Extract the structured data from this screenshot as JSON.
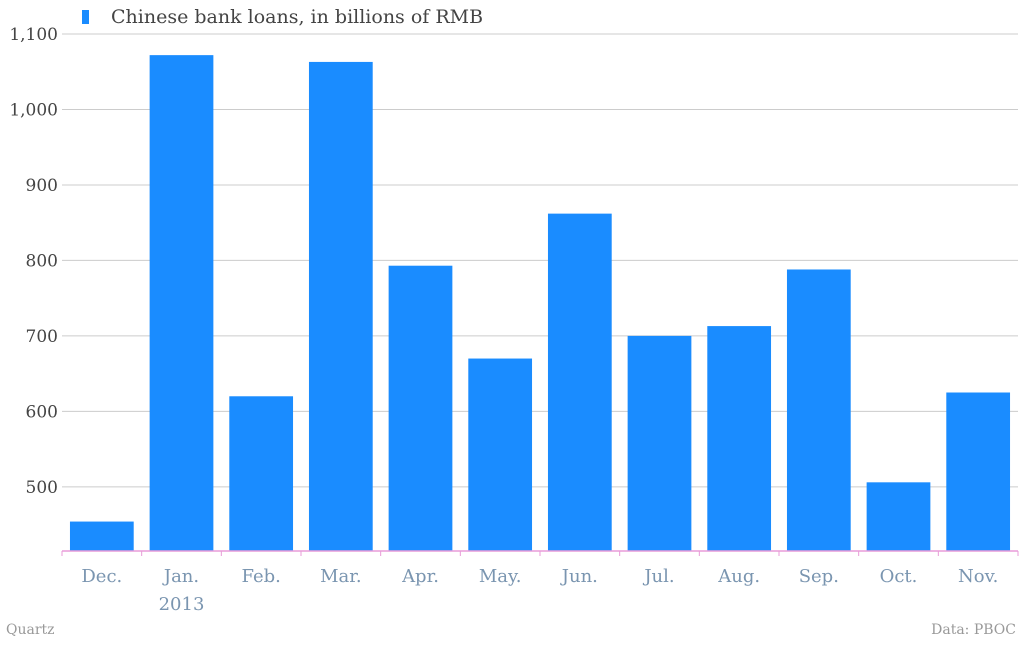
{
  "colors": {
    "bar": "#1a8cff",
    "grid": "#cccccc",
    "axis": "#e89bd8"
  },
  "chart_data": {
    "type": "bar",
    "legend": "Chinese bank loans, in billions of RMB",
    "categories": [
      "Dec.",
      "Jan.\n2013",
      "Feb.",
      "Mar.",
      "Apr.",
      "May.",
      "Jun.",
      "Jul.",
      "Aug.",
      "Sep.",
      "Oct.",
      "Nov."
    ],
    "values": [
      454,
      1072,
      620,
      1063,
      793,
      670,
      862,
      700,
      713,
      788,
      506,
      625
    ],
    "yticks": [
      "500",
      "600",
      "700",
      "800",
      "900",
      "1,000",
      "1,100"
    ],
    "ylim": [
      415,
      1100
    ],
    "grid": true,
    "legend_position": "top-left"
  },
  "footer": {
    "source_left": "Quartz",
    "source_right": "Data: PBOC"
  }
}
